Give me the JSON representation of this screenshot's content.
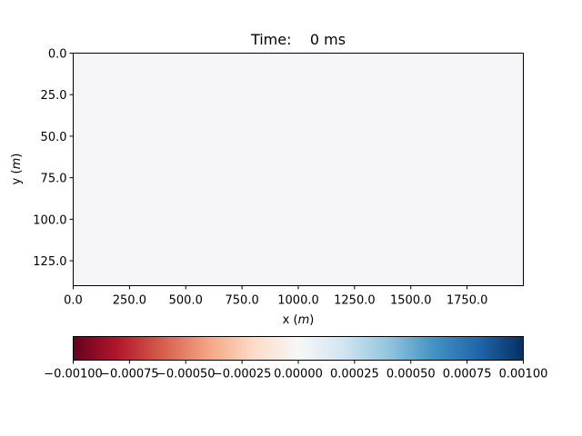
{
  "chart_data": {
    "type": "heatmap",
    "title": "Time:    0 ms",
    "xlabel": "x (m)",
    "ylabel": "y (m)",
    "xlim": [
      0,
      2000
    ],
    "ylim": [
      140,
      0
    ],
    "x_ticks": [
      0,
      250,
      500,
      750,
      1000,
      1250,
      1500,
      1750
    ],
    "x_tick_labels": [
      "0.0",
      "250.0",
      "500.0",
      "750.0",
      "1000.0",
      "1250.0",
      "1500.0",
      "1750.0"
    ],
    "y_ticks": [
      0,
      25,
      50,
      75,
      100,
      125
    ],
    "y_tick_labels": [
      "0.0",
      "25.0",
      "50.0",
      "75.0",
      "100.0",
      "125.0"
    ],
    "field_value": 0,
    "field_color": "#f5f5f7",
    "colorbar": {
      "colormap": "RdBu",
      "orientation": "horizontal",
      "vmin": -0.001,
      "vmax": 0.001,
      "ticks": [
        -0.001,
        -0.00075,
        -0.0005,
        -0.00025,
        0,
        0.00025,
        0.0005,
        0.00075,
        0.001
      ],
      "tick_labels": [
        "−0.00100",
        "−0.00075",
        "−0.00050",
        "−0.00025",
        "0.00000",
        "0.00025",
        "0.00050",
        "0.00075",
        "0.00100"
      ],
      "colors": [
        "#67001f",
        "#b2182b",
        "#d6604d",
        "#f4a582",
        "#fddbc7",
        "#f7f7f7",
        "#d1e5f0",
        "#92c5de",
        "#4393c3",
        "#2166ac",
        "#053061"
      ]
    }
  }
}
